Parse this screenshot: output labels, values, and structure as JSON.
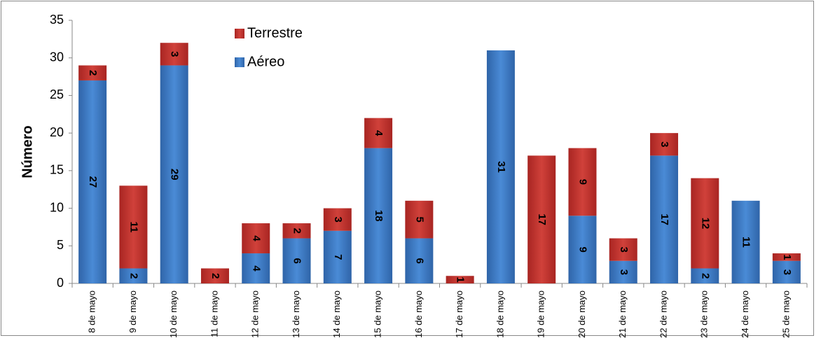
{
  "chart_data": {
    "type": "stacked_bar",
    "y_label": "Número",
    "categories": [
      "8 de mayo",
      "9 de mayo",
      "10 de mayo",
      "11 de mayo",
      "12 de mayo",
      "13 de mayo",
      "14 de mayo",
      "15 de mayo",
      "16 de mayo",
      "17 de mayo",
      "18 de mayo",
      "19 de mayo",
      "20 de mayo",
      "21 de mayo",
      "22 de mayo",
      "23 de mayo",
      "24 de mayo",
      "25 de mayo"
    ],
    "series": [
      {
        "name": "Aéreo",
        "color": "#3f7fcf",
        "values": [
          27,
          2,
          29,
          0,
          4,
          6,
          7,
          18,
          6,
          0,
          31,
          0,
          9,
          3,
          17,
          2,
          11,
          3
        ]
      },
      {
        "name": "Terrestre",
        "color": "#c0312b",
        "values": [
          2,
          11,
          3,
          2,
          4,
          2,
          3,
          4,
          5,
          1,
          0,
          17,
          9,
          3,
          3,
          12,
          0,
          1
        ]
      }
    ],
    "ylim": [
      0,
      35
    ],
    "yticks": [
      0,
      5,
      10,
      15,
      20,
      25,
      30,
      35
    ],
    "grid": false,
    "legend": "top-left"
  }
}
